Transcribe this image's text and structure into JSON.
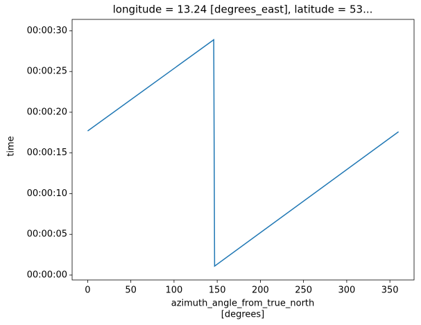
{
  "chart_data": {
    "type": "line",
    "title": "longitude = 13.24 [degrees_east], latitude = 53...",
    "x_label": "azimuth_angle_from_true_north",
    "x_unit": "[degrees]",
    "y_label": "time",
    "x": [
      0,
      146,
      147,
      360
    ],
    "series": [
      {
        "name": "time",
        "color": "#1f77b4",
        "values": [
          17.7,
          28.9,
          1.1,
          17.6
        ]
      }
    ],
    "xlim": [
      -18,
      378
    ],
    "xticks": [
      0,
      50,
      100,
      150,
      200,
      250,
      300,
      350
    ],
    "ylim": [
      -0.6,
      31.4
    ],
    "yticks": [
      {
        "value": 0,
        "label": "00:00:00"
      },
      {
        "value": 5,
        "label": "00:00:05"
      },
      {
        "value": 10,
        "label": "00:00:10"
      },
      {
        "value": 15,
        "label": "00:00:15"
      },
      {
        "value": 20,
        "label": "00:00:20"
      },
      {
        "value": 25,
        "label": "00:00:25"
      },
      {
        "value": 30,
        "label": "00:00:30"
      }
    ],
    "grid": false
  }
}
